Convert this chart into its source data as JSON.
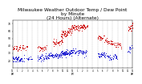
{
  "title": "Milwaukee Weather Outdoor Temp / Dew Point\nby Minute\n(24 Hours) (Alternate)",
  "title_fontsize": 4.2,
  "bg_color": "#ffffff",
  "plot_bg_color": "#ffffff",
  "grid_color": "#aaaaaa",
  "temp_color": "#cc0000",
  "dew_color": "#0000cc",
  "ylim": [
    10,
    75
  ],
  "xlim": [
    0,
    1440
  ],
  "ytick_labels": [
    "20",
    "30",
    "40",
    "50",
    "60",
    "70"
  ],
  "ytick_values": [
    20,
    30,
    40,
    50,
    60,
    70
  ],
  "marker_size": 0.4,
  "n_points": 1440
}
